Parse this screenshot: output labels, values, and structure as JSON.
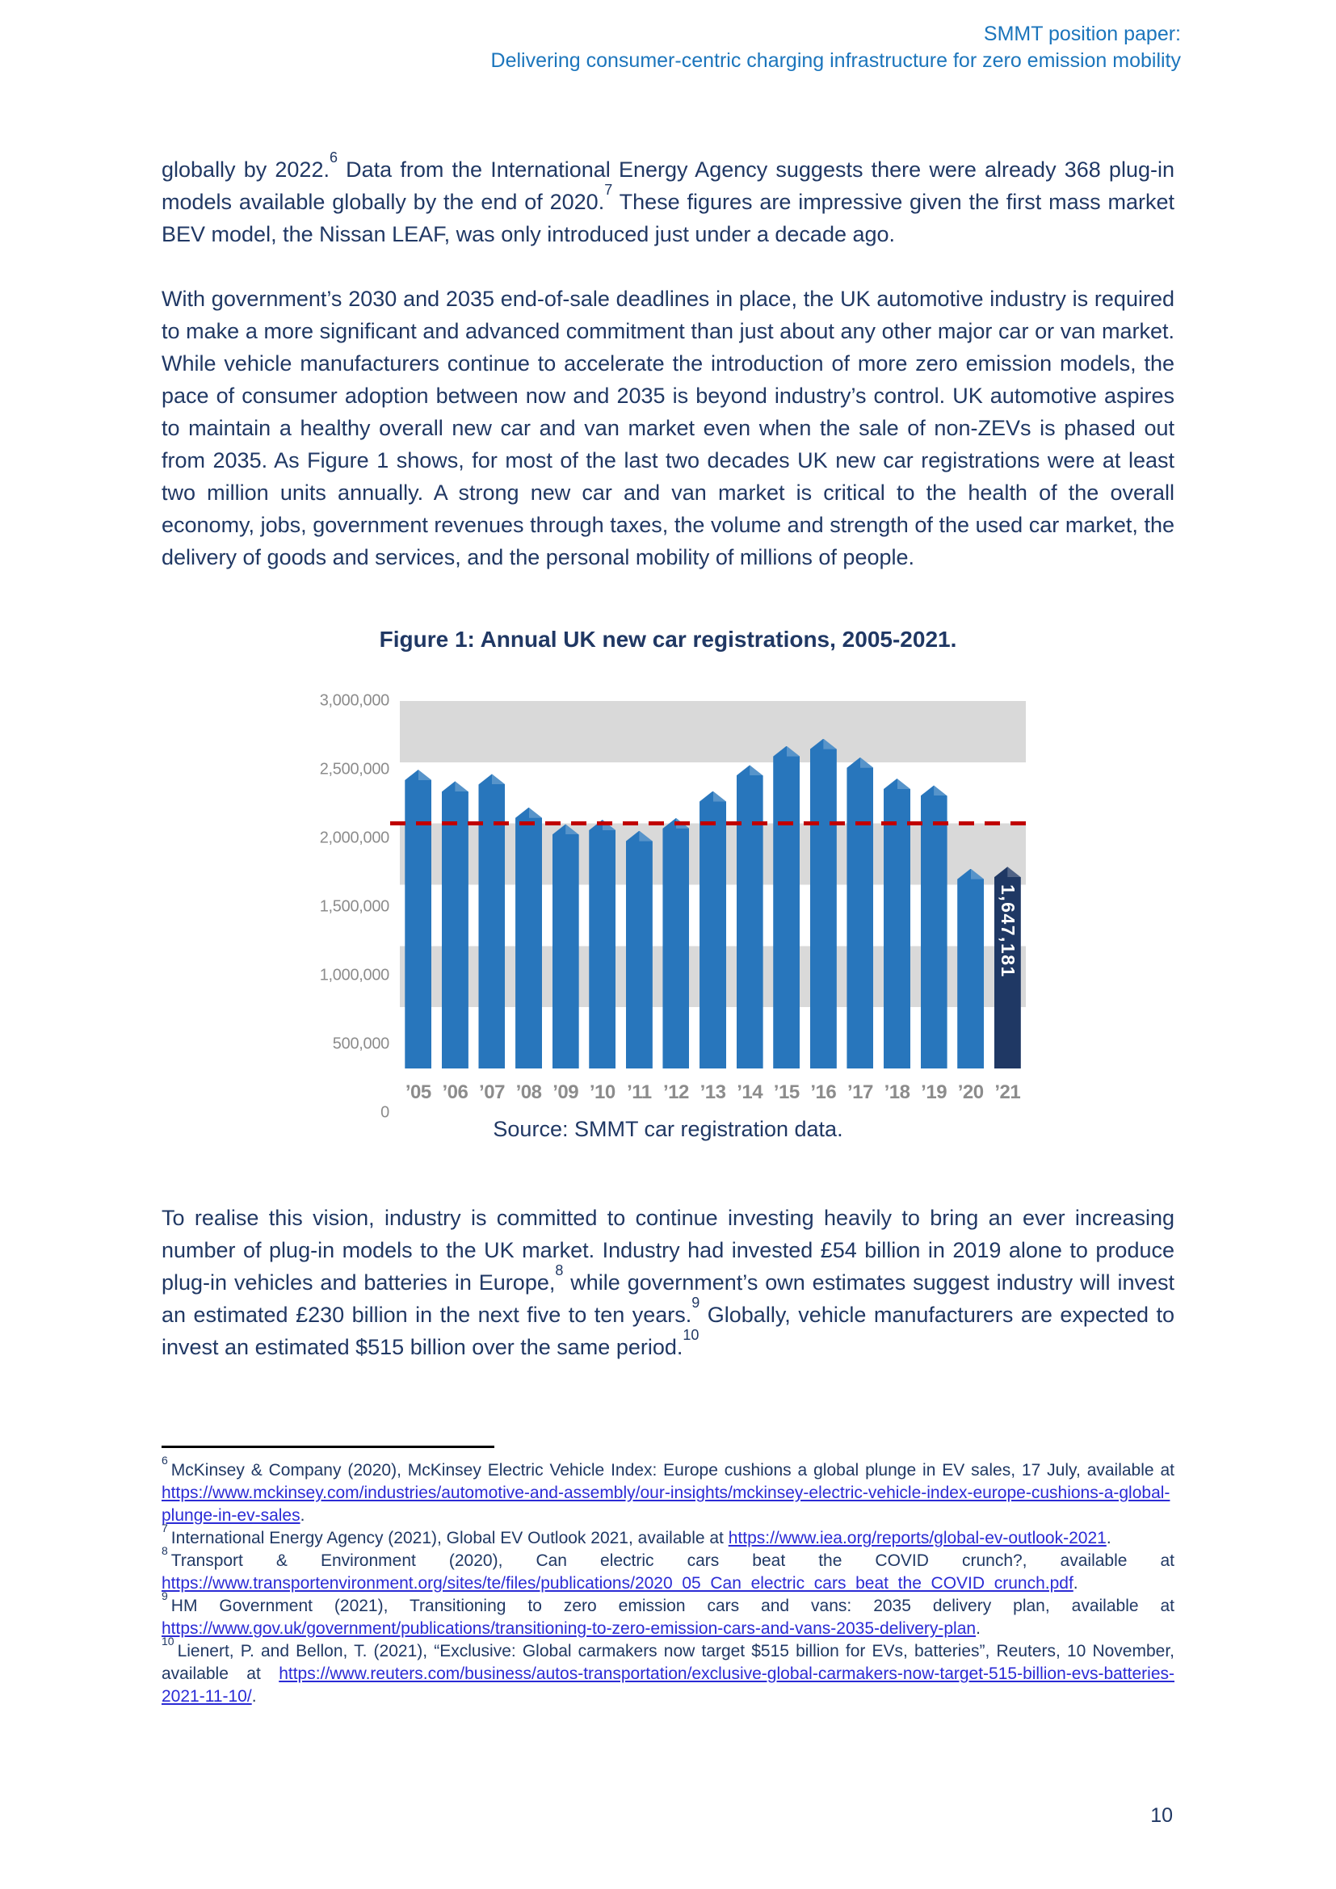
{
  "header": {
    "line1": "SMMT position paper:",
    "line2": "Delivering consumer-centric charging infrastructure for zero emission mobility"
  },
  "paragraphs": {
    "p1": {
      "s1": "globally by 2022.",
      "f1": "6",
      "s2": " Data from the International Energy Agency suggests there were already 368 plug-in models available globally by the end of 2020.",
      "f2": "7",
      "s3": " These figures are impressive given the first mass market BEV model, the Nissan LEAF, was only introduced just under a decade ago."
    },
    "p2": {
      "s1": "With government’s 2030 and 2035 end-of-sale deadlines in place, the UK automotive industry is required to make a more significant and advanced commitment than just about any other major car or van market. While vehicle manufacturers continue to accelerate the introduction of more zero emission models, the pace of consumer adoption between now and 2035 is beyond industry’s control. UK automotive aspires to maintain a healthy overall new car and van market even when the sale of non-ZEVs is phased out from 2035. As Figure 1 shows, for most of the last two decades UK new car registrations were at least two million units annually. A strong new car and van market is critical to the health of the overall economy, jobs, government revenues through taxes, the volume and strength of the used car market, the delivery of goods and services, and the personal mobility of millions of people."
    },
    "p3": {
      "s1": "To realise this vision, industry is committed to continue investing heavily to bring an ever increasing number of plug-in models to the UK market. Industry had invested £54 billion in 2019 alone to produce plug-in vehicles and batteries in Europe,",
      "f1": "8",
      "s2": " while government’s own estimates suggest industry will invest an estimated £230 billion in the next five to ten years.",
      "f2": "9",
      "s3": " Globally, vehicle manufacturers are expected to invest an estimated $515 billion over the same period.",
      "f3": "10"
    }
  },
  "chart_data": {
    "type": "bar",
    "title": "Figure 1: Annual UK new car registrations, 2005-2021.",
    "source": "Source: SMMT car registration data.",
    "categories": [
      "’05",
      "’06",
      "’07",
      "’08",
      "’09",
      "’10",
      "’11",
      "’12",
      "’13",
      "’14",
      "’15",
      "’16",
      "’17",
      "’18",
      "’19",
      "’20",
      "’21"
    ],
    "values": [
      2439717,
      2344864,
      2404007,
      2131795,
      1994999,
      2030846,
      1941253,
      2044609,
      2264737,
      2476435,
      2633503,
      2692786,
      2540617,
      2367147,
      2311140,
      1631064,
      1647181
    ],
    "ylim": [
      0,
      3000000
    ],
    "ytick_interval": 500000,
    "ytick_labels": [
      "3,000,000",
      "2,500,000",
      "2,000,000",
      "1,500,000",
      "1,000,000",
      "500,000",
      "0"
    ],
    "reference_line": {
      "value": 2000000,
      "style": "dashed",
      "color": "#C00000"
    },
    "highlight": {
      "category": "’21",
      "label": "1,647,181",
      "color": "#1F3864"
    },
    "bar_color": "#2876BC",
    "band_color": "#D9D9D9",
    "grid": "banded",
    "legend": "none"
  },
  "footnotes": [
    {
      "marker": "6",
      "t1": "McKinsey & Company (2020), McKinsey Electric Vehicle Index: Europe cushions a global plunge in EV sales, 17 July, available at ",
      "link": "https://www.mckinsey.com/industries/automotive-and-assembly/our-insights/mckinsey-electric-vehicle-index-europe-cushions-a-global-plunge-in-ev-sales",
      "t2": "."
    },
    {
      "marker": "7",
      "t1": "International Energy Agency (2021), Global EV Outlook 2021, available at ",
      "link": "https://www.iea.org/reports/global-ev-outlook-2021",
      "t2": "."
    },
    {
      "marker": "8",
      "t1": "Transport & Environment (2020), Can electric cars beat the COVID crunch?, available at ",
      "link": "https://www.transportenvironment.org/sites/te/files/publications/2020_05_Can_electric_cars_beat_the_COVID_crunch.pdf",
      "t2": "."
    },
    {
      "marker": "9",
      "t1": "HM Government (2021), Transitioning to zero emission cars and vans: 2035 delivery plan, available at ",
      "link": "https://www.gov.uk/government/publications/transitioning-to-zero-emission-cars-and-vans-2035-delivery-plan",
      "t2": "."
    },
    {
      "marker": "10",
      "t1": "Lienert, P. and Bellon, T. (2021), “Exclusive: Global carmakers now target $515 billion for EVs, batteries”, Reuters, 10 November, available at ",
      "link": "https://www.reuters.com/business/autos-transportation/exclusive-global-carmakers-now-target-515-billion-evs-batteries-2021-11-10/",
      "t2": "."
    }
  ],
  "page_number": "10",
  "colors": {
    "header_blue": "#1B75BC",
    "body_navy": "#203864",
    "link_blue": "#2B2BD5",
    "axis_gray": "#8C8C8C",
    "band_gray": "#D9D9D9",
    "bar_blue": "#2876BC",
    "bar_dark_navy": "#1F3864",
    "reference_red": "#C00000"
  }
}
